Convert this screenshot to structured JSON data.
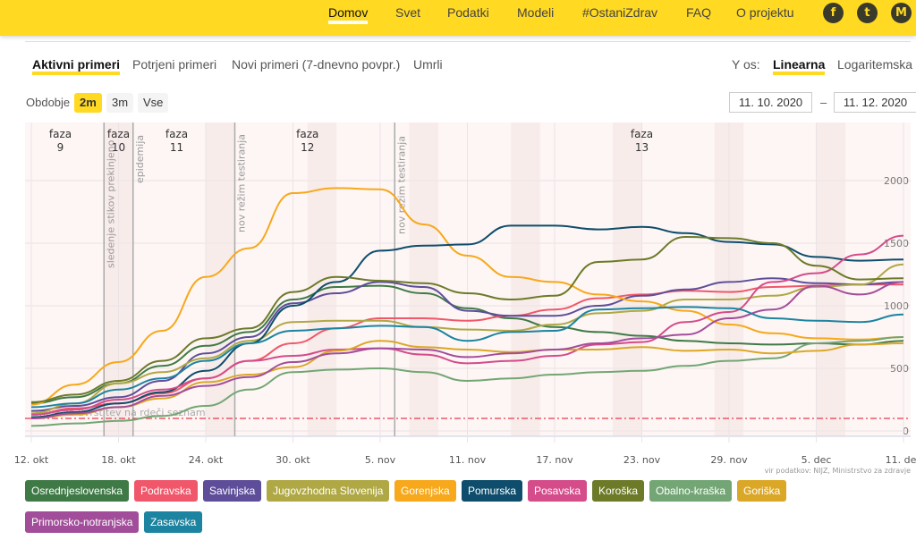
{
  "nav": {
    "items": [
      "Domov",
      "Svet",
      "Podatki",
      "Modeli",
      "#OstaniZdrav",
      "FAQ",
      "O projektu"
    ],
    "active": "Domov",
    "social": [
      {
        "icon": "facebook-icon",
        "glyph": "f"
      },
      {
        "icon": "twitter-icon",
        "glyph": "t"
      },
      {
        "icon": "medium-icon",
        "glyph": "M"
      }
    ]
  },
  "tabs": [
    "Aktivni primeri",
    "Potrjeni primeri",
    "Novi primeri (7-dnevno povpr.)",
    "Umrli"
  ],
  "yaxis": {
    "label": "Y os:",
    "options": [
      "Linearna",
      "Logaritemska"
    ],
    "active": "Linearna"
  },
  "period": {
    "label": "Obdobje",
    "options": [
      "2m",
      "3m",
      "Vse"
    ],
    "active": "2m"
  },
  "range": {
    "from": "11. 10. 2020",
    "sep": "–",
    "to": "11. 12. 2020"
  },
  "source": "vir podatkov: NIJZ, Ministrstvo za zdravje",
  "chart_data": {
    "type": "line",
    "x": [
      "12. okt",
      "15. okt",
      "18. okt",
      "21. okt",
      "24. okt",
      "27. okt",
      "30. okt",
      "2. nov",
      "5. nov",
      "8. nov",
      "11. nov",
      "14. nov",
      "17. nov",
      "20. nov",
      "23. nov",
      "26. nov",
      "29. nov",
      "2. dec",
      "5. dec",
      "8. dec",
      "11. dec"
    ],
    "xticks": [
      "12. okt",
      "18. okt",
      "24. okt",
      "30. okt",
      "5. nov",
      "11. nov",
      "17. nov",
      "23. nov",
      "29. nov",
      "5. dec",
      "11. dec"
    ],
    "yticks": [
      0,
      500,
      1000,
      1500,
      2000
    ],
    "ylim": [
      0,
      2400
    ],
    "grid": true,
    "legend": "bottom",
    "threshold": {
      "value": 100,
      "label": "meja za uvrstitev na rdeči seznam",
      "color": "#e8394d"
    },
    "phases": [
      {
        "label": "faza",
        "num": "9",
        "date": "14. okt"
      },
      {
        "label": "faza",
        "num": "10",
        "date": "18. okt"
      },
      {
        "label": "faza",
        "num": "11",
        "date": "22. okt"
      },
      {
        "label": "faza",
        "num": "12",
        "date": "31. okt"
      },
      {
        "label": "faza",
        "num": "13",
        "date": "23. nov"
      }
    ],
    "events": [
      {
        "label": "sledenje stikov prekinjeno",
        "date": "17. okt"
      },
      {
        "label": "epidemija",
        "date": "19. okt"
      },
      {
        "label": "nov režim testiranja",
        "date": "26. okt"
      },
      {
        "label": "nov režim testiranja",
        "date": "6. nov"
      }
    ],
    "series": [
      {
        "name": "Osrednjeslovenska",
        "color": "#3f7a46",
        "values": [
          220,
          270,
          380,
          520,
          680,
          790,
          1050,
          1150,
          1160,
          1100,
          980,
          900,
          830,
          790,
          760,
          720,
          700,
          690,
          700,
          690,
          720
        ]
      },
      {
        "name": "Podravska",
        "color": "#f0576a",
        "values": [
          130,
          180,
          220,
          300,
          420,
          560,
          700,
          820,
          900,
          900,
          880,
          920,
          970,
          1060,
          1090,
          1120,
          1110,
          1150,
          1160,
          1170,
          1170
        ]
      },
      {
        "name": "Savinjska",
        "color": "#5e4e9a",
        "values": [
          160,
          200,
          270,
          400,
          620,
          750,
          1020,
          1100,
          1190,
          1150,
          960,
          920,
          920,
          1000,
          1080,
          1130,
          1190,
          1220,
          1180,
          1170,
          1190
        ]
      },
      {
        "name": "Jugovzhodna Slovenija",
        "color": "#b0a845",
        "values": [
          140,
          220,
          380,
          470,
          580,
          720,
          870,
          880,
          880,
          830,
          810,
          800,
          850,
          940,
          960,
          1050,
          1050,
          1080,
          1150,
          1170,
          1330
        ]
      },
      {
        "name": "Gorenjska",
        "color": "#f7a81b",
        "values": [
          210,
          370,
          550,
          800,
          1230,
          1460,
          1900,
          1940,
          1930,
          1650,
          1400,
          1230,
          1190,
          1090,
          1035,
          960,
          850,
          780,
          740,
          730,
          750
        ]
      },
      {
        "name": "Pomurska",
        "color": "#0e4d6b",
        "values": [
          110,
          150,
          220,
          310,
          480,
          700,
          1000,
          1190,
          1440,
          1480,
          1490,
          1640,
          1640,
          1610,
          1630,
          1580,
          1510,
          1490,
          1390,
          1360,
          1370
        ]
      },
      {
        "name": "Posavska",
        "color": "#d44c8a",
        "values": [
          130,
          170,
          250,
          330,
          420,
          560,
          600,
          650,
          660,
          610,
          540,
          560,
          600,
          690,
          710,
          870,
          950,
          1190,
          1260,
          1410,
          1560
        ]
      },
      {
        "name": "Koroška",
        "color": "#6d7a28",
        "values": [
          230,
          290,
          400,
          560,
          740,
          820,
          1110,
          1230,
          1200,
          1180,
          1100,
          1050,
          1080,
          1350,
          1370,
          1550,
          1540,
          1500,
          1320,
          1210,
          1220
        ]
      },
      {
        "name": "Obalno-kraška",
        "color": "#73a674",
        "values": [
          40,
          60,
          80,
          120,
          200,
          330,
          470,
          490,
          500,
          470,
          400,
          420,
          450,
          470,
          480,
          520,
          560,
          580,
          700,
          720,
          750
        ]
      },
      {
        "name": "Goriška",
        "color": "#dba726",
        "values": [
          100,
          130,
          190,
          260,
          390,
          450,
          510,
          640,
          720,
          670,
          650,
          630,
          650,
          650,
          670,
          640,
          650,
          620,
          640,
          690,
          700
        ]
      },
      {
        "name": "Primorsko-notranjska",
        "color": "#a24d9a",
        "values": [
          100,
          140,
          190,
          280,
          360,
          430,
          550,
          620,
          660,
          650,
          590,
          620,
          650,
          700,
          740,
          770,
          900,
          970,
          1160,
          1090,
          1190
        ]
      },
      {
        "name": "Zasavska",
        "color": "#1c84a0",
        "values": [
          190,
          220,
          330,
          420,
          560,
          700,
          800,
          820,
          840,
          830,
          720,
          790,
          800,
          970,
          980,
          990,
          980,
          900,
          880,
          870,
          930
        ]
      }
    ]
  }
}
